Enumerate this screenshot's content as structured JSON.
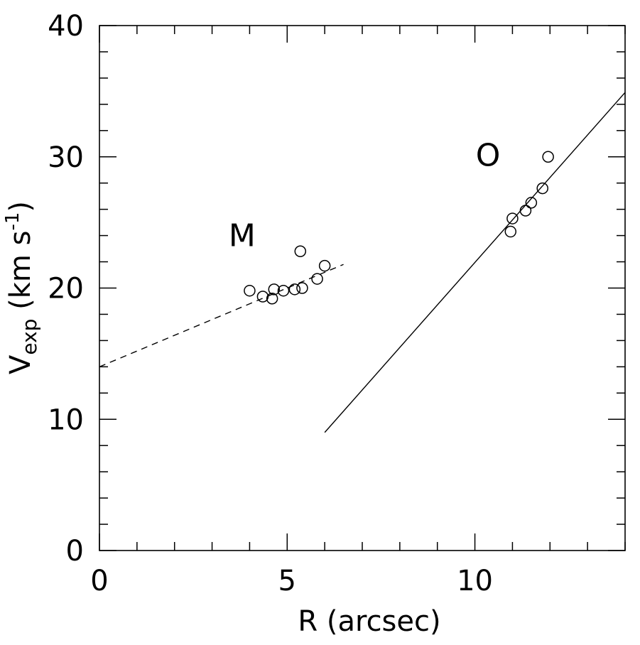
{
  "chart_data": {
    "type": "scatter",
    "xlabel": "R (arcsec)",
    "ylabel": "V",
    "ylabel_sub": "exp",
    "ylabel_units_open": " (km s",
    "ylabel_units_sup": "-1",
    "ylabel_units_close": ")",
    "xlim": [
      0,
      14
    ],
    "ylim": [
      0,
      40
    ],
    "x_ticks": [
      0,
      5,
      10
    ],
    "y_ticks": [
      0,
      10,
      20,
      30,
      40
    ],
    "x_minor_step": 1,
    "y_minor_step": 2,
    "grid": false,
    "annotations": [
      {
        "text": "M",
        "x": 3.8,
        "y": 23.2
      },
      {
        "text": "O",
        "x": 10.35,
        "y": 29.3
      }
    ],
    "series": [
      {
        "marker": "open-circle",
        "points": [
          {
            "x": 4.0,
            "y": 19.8
          },
          {
            "x": 4.35,
            "y": 19.35
          },
          {
            "x": 4.6,
            "y": 19.2
          },
          {
            "x": 4.65,
            "y": 19.9
          },
          {
            "x": 4.9,
            "y": 19.8
          },
          {
            "x": 5.2,
            "y": 19.9
          },
          {
            "x": 5.4,
            "y": 20.0
          },
          {
            "x": 5.35,
            "y": 22.8
          },
          {
            "x": 5.8,
            "y": 20.7
          },
          {
            "x": 6.0,
            "y": 21.7
          }
        ]
      },
      {
        "marker": "open-circle",
        "points": [
          {
            "x": 10.95,
            "y": 24.3
          },
          {
            "x": 11.0,
            "y": 25.3
          },
          {
            "x": 11.35,
            "y": 25.9
          },
          {
            "x": 11.5,
            "y": 26.5
          },
          {
            "x": 11.8,
            "y": 27.6
          },
          {
            "x": 11.95,
            "y": 30.0
          }
        ]
      }
    ],
    "fit_lines": [
      {
        "style": "dashed",
        "x": [
          0,
          6.5
        ],
        "y": [
          14.0,
          21.8
        ]
      },
      {
        "style": "solid",
        "x": [
          6.0,
          14.0
        ],
        "y": [
          9.0,
          34.9
        ]
      }
    ]
  }
}
